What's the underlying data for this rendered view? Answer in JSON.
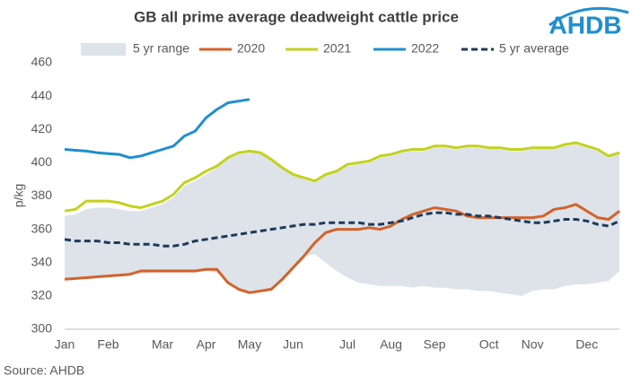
{
  "chart_data": {
    "type": "line",
    "title": "GB all prime average deadweight cattle price",
    "y_label": "p/kg",
    "source": "Source: AHDB",
    "logo": "AHDB",
    "categories": [
      "Jan",
      null,
      null,
      null,
      "Feb",
      null,
      null,
      null,
      null,
      "Mar",
      null,
      null,
      null,
      "Apr",
      null,
      null,
      null,
      "May",
      null,
      null,
      null,
      "Jun",
      null,
      null,
      null,
      null,
      "Jul",
      null,
      null,
      null,
      "Aug",
      null,
      null,
      null,
      "Sep",
      null,
      null,
      null,
      null,
      "Oct",
      null,
      null,
      null,
      "Nov",
      null,
      null,
      null,
      null,
      "Dec",
      null,
      null,
      null
    ],
    "ylim": [
      300,
      460
    ],
    "yticks": [
      300,
      320,
      340,
      360,
      380,
      400,
      420,
      440,
      460
    ],
    "grid": false,
    "series": [
      {
        "name": "5 yr range",
        "type": "range",
        "color": "#dde3e9",
        "low": [
          330,
          330,
          331,
          331,
          332,
          332,
          333,
          333,
          334,
          334,
          334,
          334,
          334,
          335,
          334,
          328,
          323,
          322,
          323,
          324,
          330,
          337,
          344,
          345,
          340,
          335,
          331,
          328,
          327,
          326,
          326,
          326,
          325,
          326,
          325,
          325,
          324,
          324,
          323,
          323,
          322,
          321,
          320,
          323,
          324,
          324,
          326,
          327,
          327,
          328,
          329,
          335
        ],
        "high": [
          368,
          369,
          372,
          373,
          373,
          372,
          371,
          371,
          373,
          375,
          379,
          386,
          389,
          393,
          397,
          402,
          405,
          406,
          406,
          402,
          397,
          393,
          390,
          388,
          392,
          394,
          398,
          399,
          400,
          403,
          404,
          406,
          407,
          407,
          409,
          409,
          408,
          409,
          409,
          408,
          408,
          407,
          407,
          408,
          408,
          408,
          410,
          411,
          409,
          407,
          404,
          406
        ]
      },
      {
        "name": "2020",
        "color": "#d4622a",
        "values": [
          330,
          330.5,
          331,
          331.5,
          332,
          332.5,
          333,
          335,
          335,
          335,
          335,
          335,
          335,
          336,
          336,
          328,
          324,
          322,
          323,
          324,
          330,
          337,
          344,
          352,
          358,
          360,
          360,
          360,
          361,
          360,
          362,
          366,
          369,
          371,
          373,
          372,
          371,
          368,
          367,
          367,
          367,
          367,
          367,
          367,
          368,
          372,
          373,
          375,
          371,
          367,
          366,
          371
        ]
      },
      {
        "name": "2021",
        "color": "#c3d21c",
        "values": [
          371,
          372,
          377,
          377,
          377,
          376,
          374,
          373,
          375,
          377,
          381,
          388,
          391,
          395,
          398,
          403,
          406,
          407,
          406,
          402,
          397,
          393,
          391,
          389,
          393,
          395,
          399,
          400,
          401,
          404,
          405,
          407,
          408,
          408,
          410,
          410,
          409,
          410,
          410,
          409,
          409,
          408,
          408,
          409,
          409,
          409,
          411,
          412,
          410,
          408,
          404,
          406
        ]
      },
      {
        "name": "2022",
        "color": "#1f8fcf",
        "values": [
          408,
          407.5,
          407,
          406,
          405.5,
          405,
          403,
          404,
          406,
          408,
          410,
          416,
          419,
          427,
          432,
          436,
          437,
          438,
          null,
          null,
          null,
          null,
          null,
          null,
          null,
          null,
          null,
          null,
          null,
          null,
          null,
          null,
          null,
          null,
          null,
          null,
          null,
          null,
          null,
          null,
          null,
          null,
          null,
          null,
          null,
          null,
          null,
          null,
          null,
          null,
          null,
          null
        ]
      },
      {
        "name": "5 yr average",
        "color": "#1d3a5a",
        "dash": true,
        "values": [
          354,
          353,
          353,
          353,
          352,
          352,
          351,
          351,
          351,
          350,
          350,
          351,
          353,
          354,
          355,
          356,
          357,
          358,
          359,
          360,
          361,
          362,
          363,
          363,
          364,
          364,
          364,
          364,
          363,
          363,
          364,
          365,
          367,
          369,
          370,
          370,
          369,
          369,
          368,
          368,
          367,
          366,
          365,
          364,
          364,
          365,
          366,
          366,
          365,
          363,
          362,
          365
        ]
      }
    ]
  }
}
